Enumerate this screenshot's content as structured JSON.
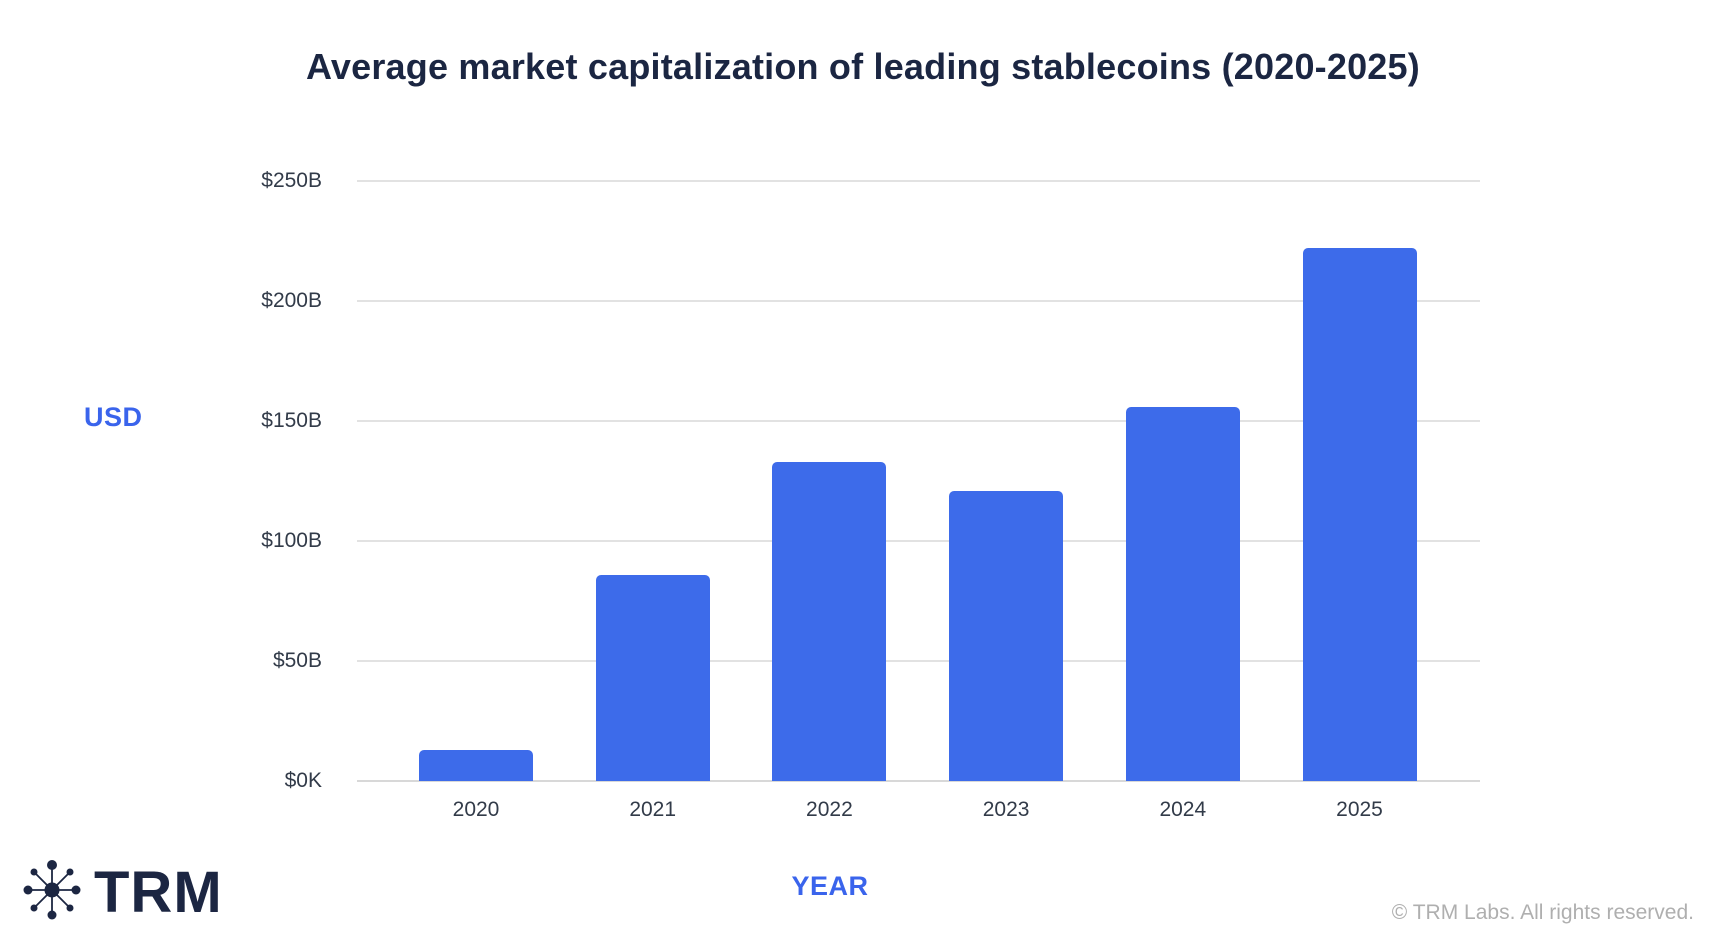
{
  "chart_data": {
    "type": "bar",
    "title": "Average market capitalization of leading stablecoins (2020-2025)",
    "categories": [
      "2020",
      "2021",
      "2022",
      "2023",
      "2024",
      "2025"
    ],
    "values": [
      13,
      86,
      133,
      121,
      156,
      222
    ],
    "unit": "USD billions",
    "xlabel": "YEAR",
    "ylabel": "USD",
    "ylim": [
      0,
      250
    ],
    "yticks": [
      {
        "label": "$0K",
        "value": 0
      },
      {
        "label": "$50B",
        "value": 50
      },
      {
        "label": "$100B",
        "value": 100
      },
      {
        "label": "$150B",
        "value": 150
      },
      {
        "label": "$200B",
        "value": 200
      },
      {
        "label": "$250B",
        "value": 250
      }
    ],
    "grid": "horizontal",
    "legend": "none",
    "bar_color": "#3D6BEA"
  },
  "branding": {
    "logo_text": "TRM",
    "logo_icon": "network-nodes-icon"
  },
  "footer": {
    "copyright": "© TRM Labs. All rights reserved."
  },
  "colors": {
    "accent_blue": "#3D6BEA",
    "axis_title_blue": "#3A64EC",
    "title_navy": "#1B2642",
    "tick_text": "#323B49",
    "gridline_gray": "#E2E2E2",
    "copyright_gray": "#AFAFAF"
  }
}
